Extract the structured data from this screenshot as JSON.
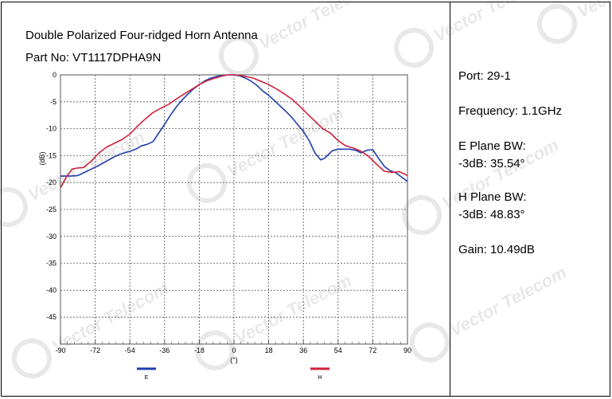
{
  "info": {
    "port": "Port: 29-1",
    "frequency": "Frequency: 1.1GHz",
    "eplane_line1": "E Plane BW:",
    "eplane_line2": "-3dB: 35.54°",
    "hplane_line1": "H Plane BW:",
    "hplane_line2": "-3dB: 48.83°",
    "gain": "Gain: 10.49dB"
  },
  "watermark": "Vector Telecom",
  "chart_data": {
    "type": "line",
    "title": "Double Polarized Four-ridged Horn Antenna",
    "subtitle": "Part No: VT1117DPHA9N",
    "xlabel": "(°)",
    "ylabel": "(dB)",
    "xlim": [
      -90,
      90
    ],
    "ylim": [
      -50,
      0
    ],
    "xticks": [
      -90,
      -72,
      -54,
      -36,
      -18,
      0,
      18,
      36,
      54,
      72,
      90
    ],
    "yticks": [
      0,
      -5,
      -10,
      -15,
      -20,
      -25,
      -30,
      -35,
      -40,
      -45
    ],
    "grid": true,
    "legend_position": "bottom",
    "series": [
      {
        "name": "E",
        "color": "#1f3fae",
        "x": [
          -90,
          -85,
          -81,
          -78,
          -74,
          -70,
          -66,
          -62,
          -58,
          -54,
          -51,
          -48,
          -45,
          -42,
          -39,
          -36,
          -33,
          -30,
          -27,
          -24,
          -21,
          -18,
          -15,
          -12,
          -9,
          -6,
          -3,
          0,
          3,
          6,
          9,
          12,
          15,
          18,
          21,
          24,
          27,
          30,
          33,
          36,
          39,
          42,
          45,
          47,
          49,
          51,
          54,
          57,
          60,
          63,
          66,
          69,
          72,
          75,
          78,
          81,
          84,
          87,
          90
        ],
        "y": [
          -18.8,
          -18.8,
          -18.7,
          -18.2,
          -17.5,
          -16.8,
          -16.0,
          -15.2,
          -14.6,
          -14.2,
          -13.8,
          -13.2,
          -12.9,
          -12.4,
          -10.8,
          -9.2,
          -7.5,
          -6.0,
          -4.7,
          -3.6,
          -2.6,
          -1.8,
          -1.1,
          -0.6,
          -0.3,
          -0.1,
          0.0,
          0.0,
          -0.2,
          -0.6,
          -1.2,
          -2.0,
          -3.0,
          -3.8,
          -4.8,
          -5.8,
          -6.8,
          -7.9,
          -9.2,
          -10.5,
          -12.2,
          -14.5,
          -15.8,
          -15.5,
          -14.8,
          -14.1,
          -13.8,
          -13.8,
          -13.8,
          -14.0,
          -14.5,
          -14.0,
          -13.9,
          -15.5,
          -17.0,
          -17.8,
          -18.2,
          -19.0,
          -19.8
        ]
      },
      {
        "name": "H",
        "color": "#d0213a",
        "x": [
          -90,
          -87,
          -84,
          -81,
          -78,
          -74,
          -70,
          -66,
          -62,
          -58,
          -54,
          -50,
          -46,
          -42,
          -38,
          -34,
          -30,
          -26,
          -22,
          -18,
          -14,
          -10,
          -6,
          -3,
          0,
          3,
          6,
          10,
          14,
          18,
          22,
          26,
          30,
          34,
          38,
          42,
          46,
          50,
          54,
          58,
          62,
          66,
          70,
          74,
          78,
          82,
          86,
          90
        ],
        "y": [
          -21.0,
          -19.0,
          -17.5,
          -17.3,
          -17.2,
          -16.0,
          -14.5,
          -13.4,
          -12.7,
          -12.0,
          -11.0,
          -9.5,
          -8.2,
          -7.0,
          -6.2,
          -5.5,
          -4.5,
          -3.6,
          -2.7,
          -1.8,
          -1.1,
          -0.6,
          -0.2,
          0.0,
          0.0,
          -0.1,
          -0.3,
          -0.6,
          -1.2,
          -1.8,
          -2.6,
          -3.5,
          -4.5,
          -5.8,
          -7.2,
          -8.6,
          -10.0,
          -10.8,
          -12.2,
          -13.2,
          -13.6,
          -14.2,
          -15.2,
          -16.6,
          -17.9,
          -18.1,
          -18.0,
          -18.7
        ]
      }
    ]
  }
}
